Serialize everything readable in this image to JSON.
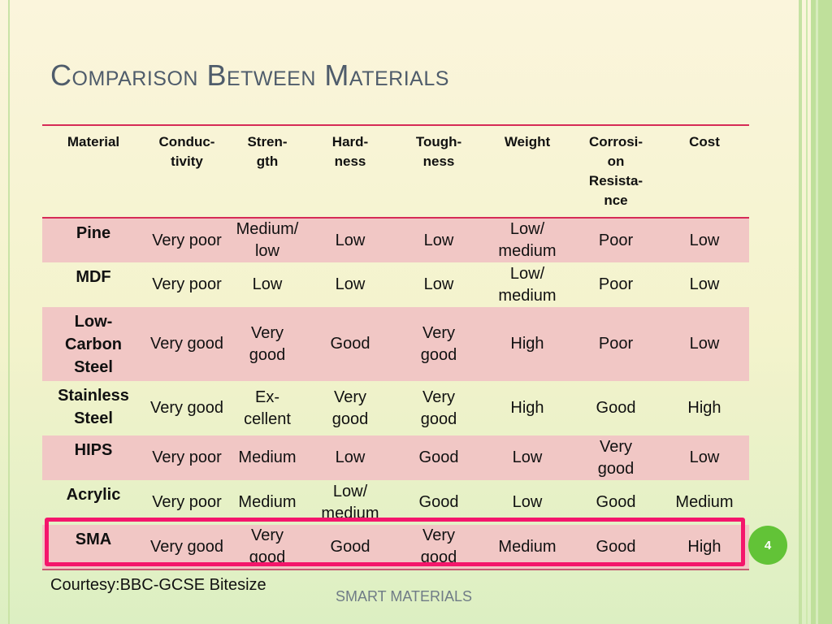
{
  "slide": {
    "title": "Comparison Between Materials",
    "courtesy": "Courtesy:BBC-GCSE Bitesize",
    "footer": "SMART MATERIALS",
    "page_number": "4",
    "colors": {
      "title": "#4f5c6b",
      "header_rule": "#d62b57",
      "row_pink": "#f1c7c5",
      "highlight_border": "#f4166b",
      "badge": "#62c337"
    }
  },
  "table": {
    "headers": [
      "Material",
      "Conduc-\ntivity",
      "Stren-\ngth",
      "Hard-\nness",
      "Tough-\nness",
      "Weight",
      "Corrosi-\non\nResista-\nnce",
      "Cost"
    ],
    "rows": [
      [
        "Pine",
        "Very poor",
        "Medium/\nlow",
        "Low",
        "Low",
        "Low/\nmedium",
        "Poor",
        "Low"
      ],
      [
        "MDF",
        "Very poor",
        "Low",
        "Low",
        "Low",
        "Low/\nmedium",
        "Poor",
        "Low"
      ],
      [
        "Low-\nCarbon\nSteel",
        "Very good",
        "Very\ngood",
        "Good",
        "Very\ngood",
        "High",
        "Poor",
        "Low"
      ],
      [
        "Stainless\nSteel",
        "Very good",
        "Ex-\ncellent",
        "Very\ngood",
        "Very\ngood",
        "High",
        "Good",
        "High"
      ],
      [
        "HIPS",
        "Very poor",
        "Medium",
        "Low",
        "Good",
        "Low",
        "Very\ngood",
        "Low"
      ],
      [
        "Acrylic",
        "Very poor",
        "Medium",
        "Low/\nmedium",
        "Good",
        "Low",
        "Good",
        "Medium"
      ],
      [
        "SMA",
        "Very good",
        "Very\ngood",
        "Good",
        "Very\ngood",
        "Medium",
        "Good",
        "High"
      ]
    ]
  }
}
